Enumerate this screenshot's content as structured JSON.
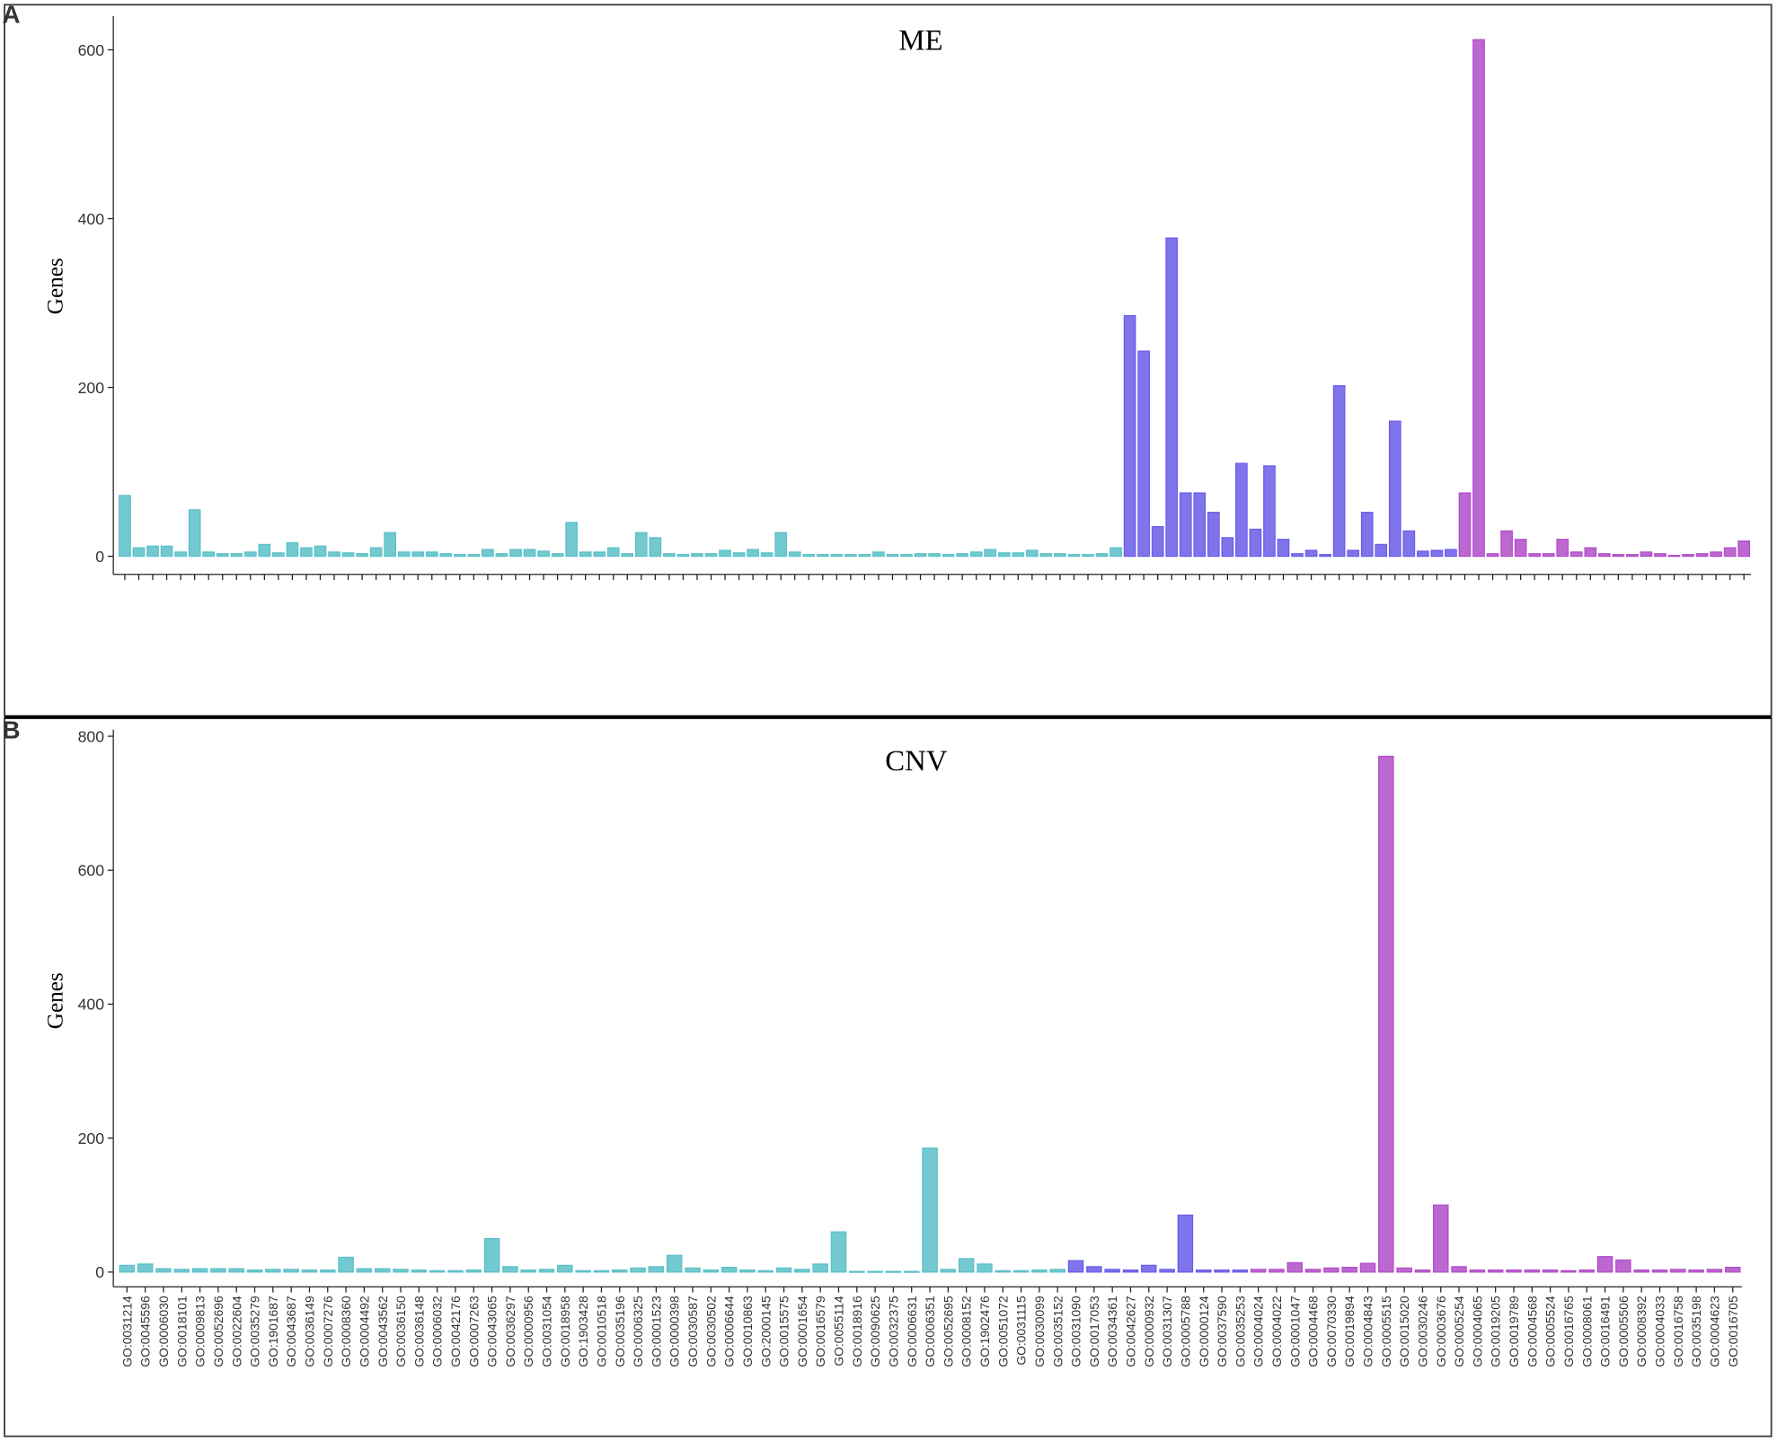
{
  "chart_data": [
    {
      "type": "bar",
      "panel": "A",
      "title": "ME",
      "ylabel": "Genes",
      "ylim": [
        0,
        640
      ],
      "yticks": [
        0,
        200,
        400,
        600
      ],
      "categories": [
        null,
        null,
        null,
        null,
        null,
        null,
        null,
        null,
        null,
        null,
        null,
        null,
        null,
        null,
        null,
        null,
        null,
        null,
        null,
        null,
        null,
        null,
        null,
        null,
        null,
        null,
        null,
        null,
        null,
        null,
        null,
        null,
        null,
        null,
        null,
        null,
        null,
        null,
        null,
        null,
        null,
        null,
        null,
        null,
        null,
        null,
        null,
        null,
        null,
        null,
        null,
        null,
        null,
        null,
        null,
        null,
        null,
        null,
        null,
        null,
        null,
        null,
        null,
        null,
        null,
        null,
        null,
        null,
        null,
        null,
        null,
        null,
        null,
        null,
        null,
        null,
        null,
        null,
        null,
        null,
        null,
        null,
        null,
        null,
        null,
        null,
        null,
        null,
        null,
        null,
        null,
        null,
        null,
        null,
        null,
        null,
        null,
        null,
        null,
        null,
        null,
        null,
        null,
        null,
        null,
        null,
        null,
        null,
        null,
        null,
        null,
        null,
        null,
        null,
        null,
        null,
        null
      ],
      "values": [
        72,
        10,
        12,
        12,
        5,
        55,
        5,
        3,
        3,
        5,
        14,
        4,
        16,
        10,
        12,
        5,
        4,
        3,
        10,
        28,
        5,
        5,
        5,
        3,
        2,
        2,
        8,
        3,
        8,
        8,
        6,
        3,
        40,
        5,
        5,
        10,
        3,
        28,
        22,
        3,
        2,
        3,
        3,
        7,
        4,
        8,
        4,
        28,
        5,
        2,
        2,
        2,
        2,
        2,
        5,
        2,
        2,
        3,
        3,
        2,
        3,
        5,
        8,
        4,
        4,
        7,
        3,
        3,
        2,
        2,
        3,
        10,
        285,
        243,
        35,
        377,
        75,
        75,
        52,
        22,
        110,
        32,
        107,
        20,
        3,
        7,
        2,
        202,
        7,
        52,
        14,
        160,
        30,
        6,
        7,
        8,
        75,
        612,
        3,
        30,
        20,
        3,
        3,
        20,
        5,
        10,
        3,
        2,
        2,
        5,
        3,
        1,
        2,
        3,
        5,
        10,
        18
      ],
      "colors": [
        "#5bc0c8",
        "#5bc0c8",
        "#5bc0c8",
        "#5bc0c8",
        "#5bc0c8",
        "#5bc0c8",
        "#5bc0c8",
        "#5bc0c8",
        "#5bc0c8",
        "#5bc0c8",
        "#5bc0c8",
        "#5bc0c8",
        "#5bc0c8",
        "#5bc0c8",
        "#5bc0c8",
        "#5bc0c8",
        "#5bc0c8",
        "#5bc0c8",
        "#5bc0c8",
        "#5bc0c8",
        "#5bc0c8",
        "#5bc0c8",
        "#5bc0c8",
        "#5bc0c8",
        "#5bc0c8",
        "#5bc0c8",
        "#5bc0c8",
        "#5bc0c8",
        "#5bc0c8",
        "#5bc0c8",
        "#5bc0c8",
        "#5bc0c8",
        "#5bc0c8",
        "#5bc0c8",
        "#5bc0c8",
        "#5bc0c8",
        "#5bc0c8",
        "#5bc0c8",
        "#5bc0c8",
        "#5bc0c8",
        "#5bc0c8",
        "#5bc0c8",
        "#5bc0c8",
        "#5bc0c8",
        "#5bc0c8",
        "#5bc0c8",
        "#5bc0c8",
        "#5bc0c8",
        "#5bc0c8",
        "#5bc0c8",
        "#5bc0c8",
        "#5bc0c8",
        "#5bc0c8",
        "#5bc0c8",
        "#5bc0c8",
        "#5bc0c8",
        "#5bc0c8",
        "#5bc0c8",
        "#5bc0c8",
        "#5bc0c8",
        "#5bc0c8",
        "#5bc0c8",
        "#5bc0c8",
        "#5bc0c8",
        "#5bc0c8",
        "#5bc0c8",
        "#5bc0c8",
        "#5bc0c8",
        "#5bc0c8",
        "#5bc0c8",
        "#5bc0c8",
        "#5bc0c8",
        "#6a5ce8",
        "#6a5ce8",
        "#6a5ce8",
        "#6a5ce8",
        "#6a5ce8",
        "#6a5ce8",
        "#6a5ce8",
        "#6a5ce8",
        "#6a5ce8",
        "#6a5ce8",
        "#6a5ce8",
        "#6a5ce8",
        "#6a5ce8",
        "#6a5ce8",
        "#6a5ce8",
        "#6a5ce8",
        "#6a5ce8",
        "#6a5ce8",
        "#6a5ce8",
        "#6a5ce8",
        "#6a5ce8",
        "#6a5ce8",
        "#6a5ce8",
        "#6a5ce8",
        "#b14cc9",
        "#b14cc9",
        "#b14cc9",
        "#b14cc9",
        "#b14cc9",
        "#b14cc9",
        "#b14cc9",
        "#b14cc9",
        "#b14cc9",
        "#b14cc9",
        "#b14cc9",
        "#b14cc9",
        "#b14cc9",
        "#b14cc9",
        "#b14cc9",
        "#b14cc9",
        "#b14cc9",
        "#b14cc9",
        "#b14cc9",
        "#b14cc9",
        "#b14cc9"
      ]
    },
    {
      "type": "bar",
      "panel": "B",
      "title": "CNV",
      "ylabel": "Genes",
      "ylim": [
        0,
        810
      ],
      "yticks": [
        0,
        200,
        400,
        600,
        800
      ],
      "categories": [
        "GO:0031214",
        "GO:0045596",
        "GO:0006030",
        "GO:0018101",
        "GO:0009813",
        "GO:0052696",
        "GO:0022604",
        "GO:0035279",
        "GO:1901687",
        "GO:0043687",
        "GO:0036149",
        "GO:0007276",
        "GO:0008360",
        "GO:0004492",
        "GO:0043562",
        "GO:0036150",
        "GO:0036148",
        "GO:0006032",
        "GO:0042176",
        "GO:0007263",
        "GO:0043065",
        "GO:0036297",
        "GO:0000956",
        "GO:0031054",
        "GO:0018958",
        "GO:1903428",
        "GO:0010518",
        "GO:0035196",
        "GO:0006325",
        "GO:0001523",
        "GO:0000398",
        "GO:0030587",
        "GO:0030502",
        "GO:0006644",
        "GO:0010863",
        "GO:2000145",
        "GO:0015575",
        "GO:0001654",
        "GO:0016579",
        "GO:0055114",
        "GO:0018916",
        "GO:0090625",
        "GO:0032375",
        "GO:0006631",
        "GO:0006351",
        "GO:0052695",
        "GO:0008152",
        "GO:1902476",
        "GO:0051072",
        "GO:0031115",
        "GO:0030099",
        "GO:0035152",
        "GO:0031090",
        "GO:0017053",
        "GO:0034361",
        "GO:0042627",
        "GO:0000932",
        "GO:0031307",
        "GO:0005788",
        "GO:0000124",
        "GO:0037590",
        "GO:0035253",
        "GO:0004024",
        "GO:0004022",
        "GO:0001047",
        "GO:0004468",
        "GO:0070330",
        "GO:0019894",
        "GO:0004843",
        "GO:0005515",
        "GO:0015020",
        "GO:0030246",
        "GO:0003676",
        "GO:0005254",
        "GO:0004065",
        "GO:0019205",
        "GO:0019789",
        "GO:0004568",
        "GO:0005524",
        "GO:0016765",
        "GO:0008061",
        "GO:0016491",
        "GO:0005506",
        "GO:0008392",
        "GO:0004033",
        "GO:0016758",
        "GO:0035198",
        "GO:0004623",
        "GO:0016705"
      ],
      "values": [
        10,
        12,
        5,
        4,
        5,
        5,
        5,
        3,
        4,
        4,
        3,
        3,
        22,
        5,
        5,
        4,
        3,
        2,
        2,
        3,
        50,
        8,
        3,
        4,
        10,
        2,
        2,
        3,
        6,
        8,
        25,
        6,
        3,
        7,
        3,
        2,
        6,
        4,
        12,
        60,
        1,
        1,
        1,
        1,
        185,
        4,
        20,
        12,
        2,
        2,
        3,
        4,
        17,
        8,
        4,
        3,
        10,
        4,
        85,
        3,
        3,
        3,
        4,
        4,
        14,
        4,
        6,
        7,
        13,
        770,
        6,
        3,
        100,
        8,
        3,
        3,
        3,
        3,
        3,
        2,
        3,
        23,
        18,
        3,
        3,
        4,
        3,
        4,
        7
      ],
      "colors": [
        "#5bc0c8",
        "#5bc0c8",
        "#5bc0c8",
        "#5bc0c8",
        "#5bc0c8",
        "#5bc0c8",
        "#5bc0c8",
        "#5bc0c8",
        "#5bc0c8",
        "#5bc0c8",
        "#5bc0c8",
        "#5bc0c8",
        "#5bc0c8",
        "#5bc0c8",
        "#5bc0c8",
        "#5bc0c8",
        "#5bc0c8",
        "#5bc0c8",
        "#5bc0c8",
        "#5bc0c8",
        "#5bc0c8",
        "#5bc0c8",
        "#5bc0c8",
        "#5bc0c8",
        "#5bc0c8",
        "#5bc0c8",
        "#5bc0c8",
        "#5bc0c8",
        "#5bc0c8",
        "#5bc0c8",
        "#5bc0c8",
        "#5bc0c8",
        "#5bc0c8",
        "#5bc0c8",
        "#5bc0c8",
        "#5bc0c8",
        "#5bc0c8",
        "#5bc0c8",
        "#5bc0c8",
        "#5bc0c8",
        "#5bc0c8",
        "#5bc0c8",
        "#5bc0c8",
        "#5bc0c8",
        "#5bc0c8",
        "#5bc0c8",
        "#5bc0c8",
        "#5bc0c8",
        "#5bc0c8",
        "#5bc0c8",
        "#5bc0c8",
        "#5bc0c8",
        "#6a5ce8",
        "#6a5ce8",
        "#6a5ce8",
        "#6a5ce8",
        "#6a5ce8",
        "#6a5ce8",
        "#6a5ce8",
        "#6a5ce8",
        "#6a5ce8",
        "#6a5ce8",
        "#b14cc9",
        "#b14cc9",
        "#b14cc9",
        "#b14cc9",
        "#b14cc9",
        "#b14cc9",
        "#b14cc9",
        "#b14cc9",
        "#b14cc9",
        "#b14cc9",
        "#b14cc9",
        "#b14cc9",
        "#b14cc9",
        "#b14cc9",
        "#b14cc9",
        "#b14cc9",
        "#b14cc9",
        "#b14cc9",
        "#b14cc9",
        "#b14cc9",
        "#b14cc9",
        "#b14cc9",
        "#b14cc9",
        "#b14cc9",
        "#b14cc9",
        "#b14cc9",
        "#b14cc9"
      ]
    }
  ]
}
